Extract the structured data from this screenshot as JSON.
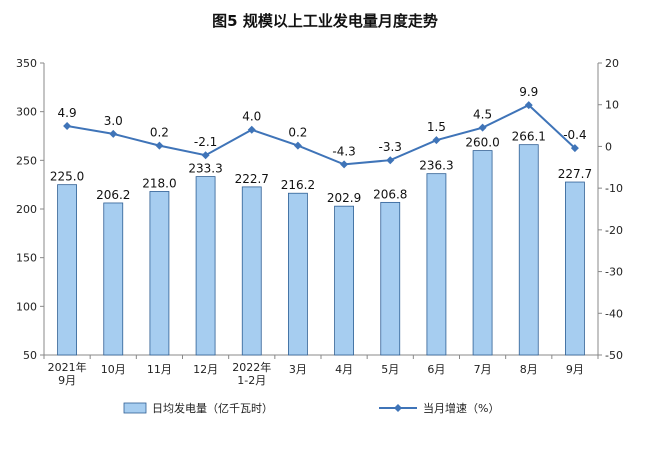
{
  "chart_data": {
    "type": "bar",
    "title": "图5 规模以上工业发电量月度走势",
    "categories": [
      [
        "2021年",
        "9月"
      ],
      [
        "10月"
      ],
      [
        "11月"
      ],
      [
        "12月"
      ],
      [
        "2022年",
        "1-2月"
      ],
      [
        "3月"
      ],
      [
        "4月"
      ],
      [
        "5月"
      ],
      [
        "6月"
      ],
      [
        "7月"
      ],
      [
        "8月"
      ],
      [
        "9月"
      ]
    ],
    "series": [
      {
        "name": "日均发电量（亿千瓦时）",
        "type": "bar",
        "axis": "left",
        "color": "#a6cdf0",
        "values": [
          225.0,
          206.2,
          218.0,
          233.3,
          222.7,
          216.2,
          202.9,
          206.8,
          236.3,
          260.0,
          266.1,
          227.7
        ],
        "labels": [
          "225.0",
          "206.2",
          "218.0",
          "233.3",
          "222.7",
          "216.2",
          "202.9",
          "206.8",
          "236.3",
          "260.0",
          "266.1",
          "227.7"
        ]
      },
      {
        "name": "当月增速（%）",
        "type": "line",
        "axis": "right",
        "color": "#3f74b8",
        "values": [
          4.9,
          3.0,
          0.2,
          -2.1,
          4.0,
          0.2,
          -4.3,
          -3.3,
          1.5,
          4.5,
          9.9,
          -0.4
        ],
        "labels": [
          "4.9",
          "3.0",
          "0.2",
          "-2.1",
          "4.0",
          "0.2",
          "-4.3",
          "-3.3",
          "1.5",
          "4.5",
          "9.9",
          "-0.4"
        ]
      }
    ],
    "y_left": {
      "min": 50,
      "max": 350,
      "ticks": [
        "50",
        "100",
        "150",
        "200",
        "250",
        "300",
        "350"
      ]
    },
    "y_right": {
      "min": -50,
      "max": 20,
      "ticks": [
        "-50",
        "-40",
        "-30",
        "-20",
        "-10",
        "0",
        "10",
        "20"
      ]
    },
    "grid": false,
    "legend": "bottom"
  }
}
